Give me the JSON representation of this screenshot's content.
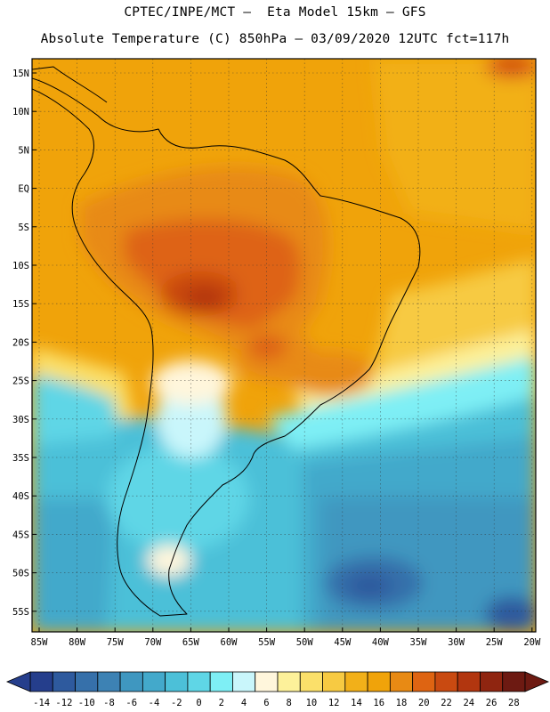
{
  "header": {
    "line1": "CPTEC/INPE/MCT –  Eta Model 15km – GFS",
    "line2": "Absolute Temperature (C) 850hPa – 03/09/2020 12UTC fct=117h"
  },
  "map": {
    "lat_labels": [
      "15N",
      "10N",
      "5N",
      "EQ",
      "5S",
      "10S",
      "15S",
      "20S",
      "25S",
      "30S",
      "35S",
      "40S",
      "45S",
      "50S",
      "55S"
    ],
    "lon_labels": [
      "85W",
      "80W",
      "75W",
      "70W",
      "65W",
      "60W",
      "55W",
      "50W",
      "45W",
      "40W",
      "35W",
      "30W",
      "25W",
      "20W"
    ]
  },
  "colorbar": {
    "labels": [
      "-14",
      "-12",
      "-10",
      "-8",
      "-6",
      "-4",
      "-2",
      "0",
      "2",
      "4",
      "6",
      "8",
      "10",
      "12",
      "14",
      "16",
      "18",
      "20",
      "22",
      "24",
      "26",
      "28"
    ],
    "colors": [
      "#253e8c",
      "#2e5a9e",
      "#3670aa",
      "#3d82b4",
      "#3f97c0",
      "#43a9cb",
      "#4cc0d8",
      "#5fd6e6",
      "#7eeff5",
      "#c9f6fb",
      "#fff6dc",
      "#fdf19a",
      "#fbe06a",
      "#f7ca42",
      "#f2b019",
      "#f0a30a",
      "#e88a14",
      "#de6412",
      "#c94a11",
      "#b2360f",
      "#8f2510",
      "#6d1a12"
    ],
    "min_arrow_color": "#253e8c",
    "max_arrow_color": "#6d1a12"
  }
}
